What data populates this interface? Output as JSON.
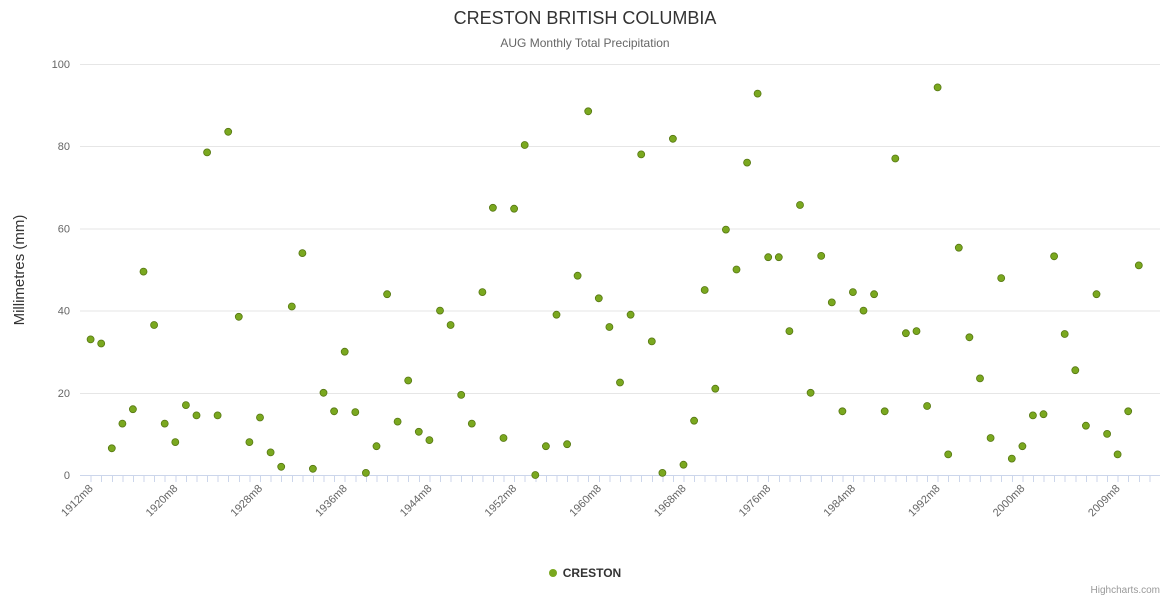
{
  "header": {
    "title": "CRESTON BRITISH COLUMBIA",
    "subtitle": "AUG Monthly Total Precipitation"
  },
  "legend": {
    "items": [
      {
        "label": "CRESTON",
        "color": "#7AA81F"
      }
    ]
  },
  "credits": {
    "label": "Highcharts.com"
  },
  "chart_data": {
    "type": "scatter",
    "title": "CRESTON BRITISH COLUMBIA",
    "subtitle": "AUG Monthly Total Precipitation",
    "xlabel": "",
    "ylabel": "Millimetres (mm)",
    "ylim": [
      0,
      100
    ],
    "yticks": [
      0,
      20,
      40,
      60,
      80,
      100
    ],
    "xlim": [
      1911,
      2013
    ],
    "grid": "horizontal",
    "legend_position": "bottom-center",
    "xticks": [
      {
        "x": 1912,
        "label": "1912m8"
      },
      {
        "x": 1920,
        "label": "1920m8"
      },
      {
        "x": 1928,
        "label": "1928m8"
      },
      {
        "x": 1936,
        "label": "1936m8"
      },
      {
        "x": 1944,
        "label": "1944m8"
      },
      {
        "x": 1952,
        "label": "1952m8"
      },
      {
        "x": 1960,
        "label": "1960m8"
      },
      {
        "x": 1968,
        "label": "1968m8"
      },
      {
        "x": 1976,
        "label": "1976m8"
      },
      {
        "x": 1984,
        "label": "1984m8"
      },
      {
        "x": 1992,
        "label": "1992m8"
      },
      {
        "x": 2000,
        "label": "2000m8"
      },
      {
        "x": 2009,
        "label": "2009m8"
      }
    ],
    "series": [
      {
        "name": "CRESTON",
        "color": "#7AA81F",
        "stroke": "#567712",
        "marker": "circle",
        "points": [
          [
            1912,
            33
          ],
          [
            1913,
            32
          ],
          [
            1914,
            6.5
          ],
          [
            1915,
            12.5
          ],
          [
            1916,
            16
          ],
          [
            1917,
            49.5
          ],
          [
            1918,
            36.5
          ],
          [
            1919,
            12.5
          ],
          [
            1920,
            8
          ],
          [
            1921,
            17
          ],
          [
            1922,
            14.5
          ],
          [
            1923,
            78.5
          ],
          [
            1924,
            14.5
          ],
          [
            1925,
            83.5
          ],
          [
            1926,
            38.5
          ],
          [
            1927,
            8
          ],
          [
            1928,
            14
          ],
          [
            1929,
            5.5
          ],
          [
            1930,
            2
          ],
          [
            1931,
            41
          ],
          [
            1932,
            54
          ],
          [
            1933,
            1.5
          ],
          [
            1934,
            20
          ],
          [
            1935,
            15.5
          ],
          [
            1936,
            30
          ],
          [
            1937,
            15.3
          ],
          [
            1938,
            0.5
          ],
          [
            1939,
            7
          ],
          [
            1940,
            44
          ],
          [
            1941,
            13
          ],
          [
            1942,
            23
          ],
          [
            1943,
            10.5
          ],
          [
            1944,
            8.5
          ],
          [
            1945,
            40
          ],
          [
            1946,
            36.5
          ],
          [
            1947,
            19.5
          ],
          [
            1948,
            12.5
          ],
          [
            1949,
            44.5
          ],
          [
            1950,
            65
          ],
          [
            1951,
            9
          ],
          [
            1952,
            64.8
          ],
          [
            1953,
            80.3
          ],
          [
            1954,
            0
          ],
          [
            1955,
            7
          ],
          [
            1956,
            39
          ],
          [
            1957,
            7.5
          ],
          [
            1958,
            48.5
          ],
          [
            1959,
            88.5
          ],
          [
            1960,
            43
          ],
          [
            1961,
            36
          ],
          [
            1962,
            22.5
          ],
          [
            1963,
            39
          ],
          [
            1964,
            78
          ],
          [
            1965,
            32.5
          ],
          [
            1966,
            0.5
          ],
          [
            1967,
            81.8
          ],
          [
            1968,
            2.5
          ],
          [
            1969,
            13.2
          ],
          [
            1970,
            45
          ],
          [
            1971,
            21
          ],
          [
            1972,
            59.7
          ],
          [
            1973,
            50
          ],
          [
            1974,
            76
          ],
          [
            1975,
            92.8
          ],
          [
            1976,
            53
          ],
          [
            1977,
            53
          ],
          [
            1978,
            35
          ],
          [
            1979,
            65.7
          ],
          [
            1980,
            20
          ],
          [
            1981,
            53.3
          ],
          [
            1982,
            42
          ],
          [
            1983,
            15.5
          ],
          [
            1984,
            44.5
          ],
          [
            1985,
            40
          ],
          [
            1986,
            44
          ],
          [
            1987,
            15.5
          ],
          [
            1988,
            77
          ],
          [
            1989,
            34.5
          ],
          [
            1990,
            35
          ],
          [
            1991,
            16.8
          ],
          [
            1992,
            94.3
          ],
          [
            1993,
            5
          ],
          [
            1994,
            55.3
          ],
          [
            1995,
            33.5
          ],
          [
            1996,
            23.5
          ],
          [
            1997,
            9
          ],
          [
            1998,
            47.9
          ],
          [
            1999,
            4
          ],
          [
            2000,
            7
          ],
          [
            2001,
            14.5
          ],
          [
            2002,
            14.8
          ],
          [
            2003,
            53.2
          ],
          [
            2004,
            34.3
          ],
          [
            2005,
            25.5
          ],
          [
            2006,
            12
          ],
          [
            2007,
            44
          ],
          [
            2008,
            10
          ],
          [
            2009,
            5
          ],
          [
            2010,
            15.5
          ],
          [
            2011,
            51
          ]
        ]
      }
    ]
  }
}
